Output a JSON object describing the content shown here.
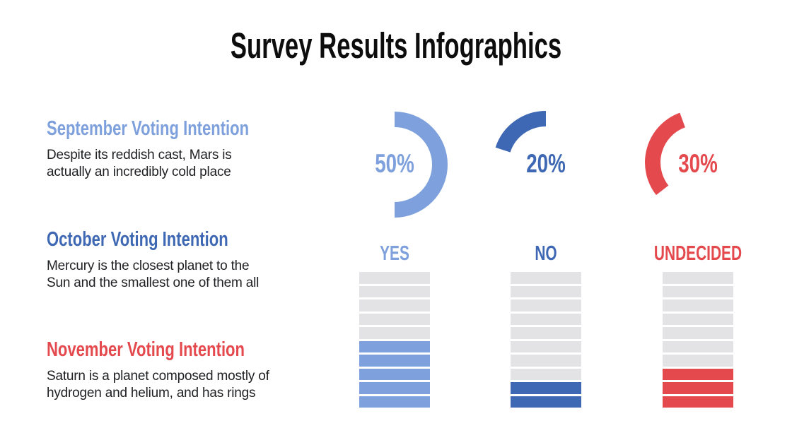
{
  "title": "Survey Results Infographics",
  "colors": {
    "light_blue": "#7EA0DC",
    "dark_blue": "#3E68B3",
    "red": "#E4494E",
    "segment_empty": "#E3E3E5",
    "body_text": "#202124",
    "title_text": "#0D0D0D",
    "background": "#FFFFFF"
  },
  "sections": [
    {
      "heading": "September Voting Intention",
      "color": "#7EA0DC",
      "body_lines": [
        "Despite its reddish cast, Mars is",
        "actually an incredibly cold place"
      ]
    },
    {
      "heading": "October Voting Intention",
      "color": "#3E68B3",
      "body_lines": [
        "Mercury is the closest planet to the",
        "Sun and the smallest one of them all"
      ]
    },
    {
      "heading": "November Voting Intention",
      "color": "#E4494E",
      "body_lines": [
        "Saturn is a planet composed mostly of",
        "hydrogen and helium, and has rings"
      ]
    }
  ],
  "donuts": [
    {
      "label": "50%",
      "pct": 50,
      "color": "#7EA0DC"
    },
    {
      "label": "20%",
      "pct": 20,
      "color": "#3E68B3"
    },
    {
      "label": "30%",
      "pct": 30,
      "color": "#E4494E"
    }
  ],
  "bars": {
    "total_segments": 10,
    "empty_color": "#E3E3E5",
    "columns": [
      {
        "label": "YES",
        "filled": 5,
        "color": "#7EA0DC"
      },
      {
        "label": "NO",
        "filled": 2,
        "color": "#3E68B3"
      },
      {
        "label": "UNDECIDED",
        "filled": 3,
        "color": "#E4494E"
      }
    ]
  },
  "chart_data": [
    {
      "type": "pie",
      "style": "partial-donut-gauges",
      "title": "Voting intention share",
      "labels": [
        "YES",
        "NO",
        "UNDECIDED"
      ],
      "values": [
        50,
        20,
        30
      ],
      "unit": "%",
      "colors": [
        "#7EA0DC",
        "#3E68B3",
        "#E4494E"
      ],
      "annotations": [
        "50%",
        "20%",
        "30%"
      ]
    },
    {
      "type": "bar",
      "style": "segmented-columns-filled-from-bottom",
      "title": "Voting intention segments",
      "categories": [
        "YES",
        "NO",
        "UNDECIDED"
      ],
      "values": [
        5,
        2,
        3
      ],
      "ylim": [
        0,
        10
      ],
      "note": "each column has 10 stacked segments; 5, 2 and 3 are filled from the bottom"
    }
  ]
}
